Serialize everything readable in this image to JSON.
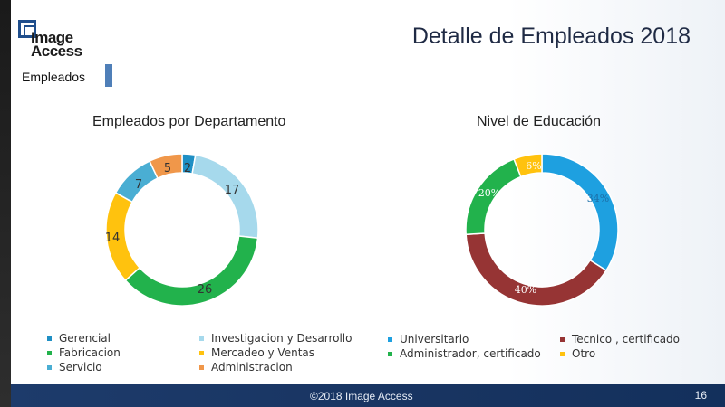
{
  "slide": {
    "title": "Detalle de Empleados 2018",
    "section_label": "Empleados",
    "logo": {
      "line1": "Image",
      "line2": "Access"
    },
    "footer_text": "©2018 Image Access",
    "page_number": "16"
  },
  "chart_data": [
    {
      "type": "pie",
      "subtype": "donut",
      "title": "Empleados por Departamento",
      "categories": [
        "Gerencial",
        "Investigacion y Desarrollo",
        "Fabricacion",
        "Mercadeo y Ventas",
        "Servicio",
        "Administracion"
      ],
      "values": [
        2,
        17,
        26,
        14,
        7,
        5
      ],
      "colors": [
        "#1f8fc4",
        "#a6d9ec",
        "#22b24c",
        "#ffc20e",
        "#4aaed3",
        "#f0974a"
      ],
      "labels": [
        "2",
        "17",
        "26",
        "14",
        "7",
        "5"
      ],
      "legend": "bottom",
      "legend_order": [
        "Gerencial",
        "Fabricacion",
        "Servicio",
        "Investigacion y Desarrollo",
        "Mercadeo y Ventas",
        "Administracion"
      ]
    },
    {
      "type": "pie",
      "subtype": "donut",
      "title": "Nivel de Educación",
      "categories": [
        "Universitario",
        "Tecnico , certificado",
        "Administrador, certificado",
        "Otro"
      ],
      "values": [
        34,
        40,
        20,
        6
      ],
      "colors": [
        "#1ea0e0",
        "#963434",
        "#22b24c",
        "#ffc20e"
      ],
      "labels": [
        "34%",
        "40%",
        "20%",
        "6%"
      ],
      "legend": "bottom",
      "legend_order": [
        "Universitario",
        "Administrador, certificado",
        "Tecnico , certificado",
        "Otro"
      ]
    }
  ]
}
